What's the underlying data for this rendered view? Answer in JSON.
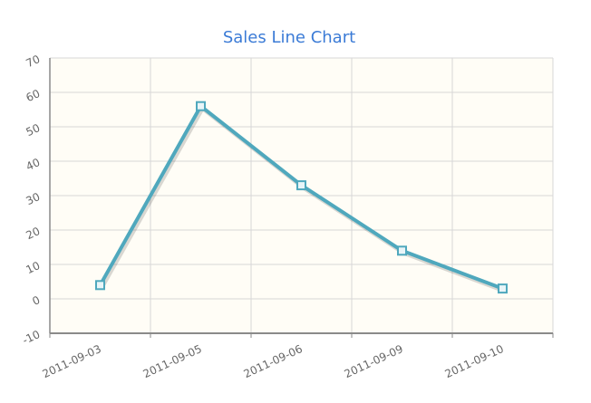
{
  "chart_data": {
    "type": "line",
    "title": "Sales Line Chart",
    "xlabel": "",
    "ylabel": "",
    "categories": [
      "2011-09-03",
      "2011-09-05",
      "2011-09-06",
      "2011-09-09",
      "2011-09-10"
    ],
    "series": [
      {
        "values": [
          4,
          56,
          33,
          14,
          3
        ],
        "color": "#4fa8bd"
      }
    ],
    "ylim": [
      -10,
      70
    ],
    "yticks": [
      -10,
      0,
      10,
      20,
      30,
      40,
      50,
      60,
      70
    ],
    "grid": true,
    "legend": "none",
    "colors": {
      "plot_background": "#fffdf6",
      "grid": "#d7d7d7",
      "axis": "#8a8a8a",
      "title": "#3b7bd6",
      "tick_text": "#666666"
    }
  }
}
